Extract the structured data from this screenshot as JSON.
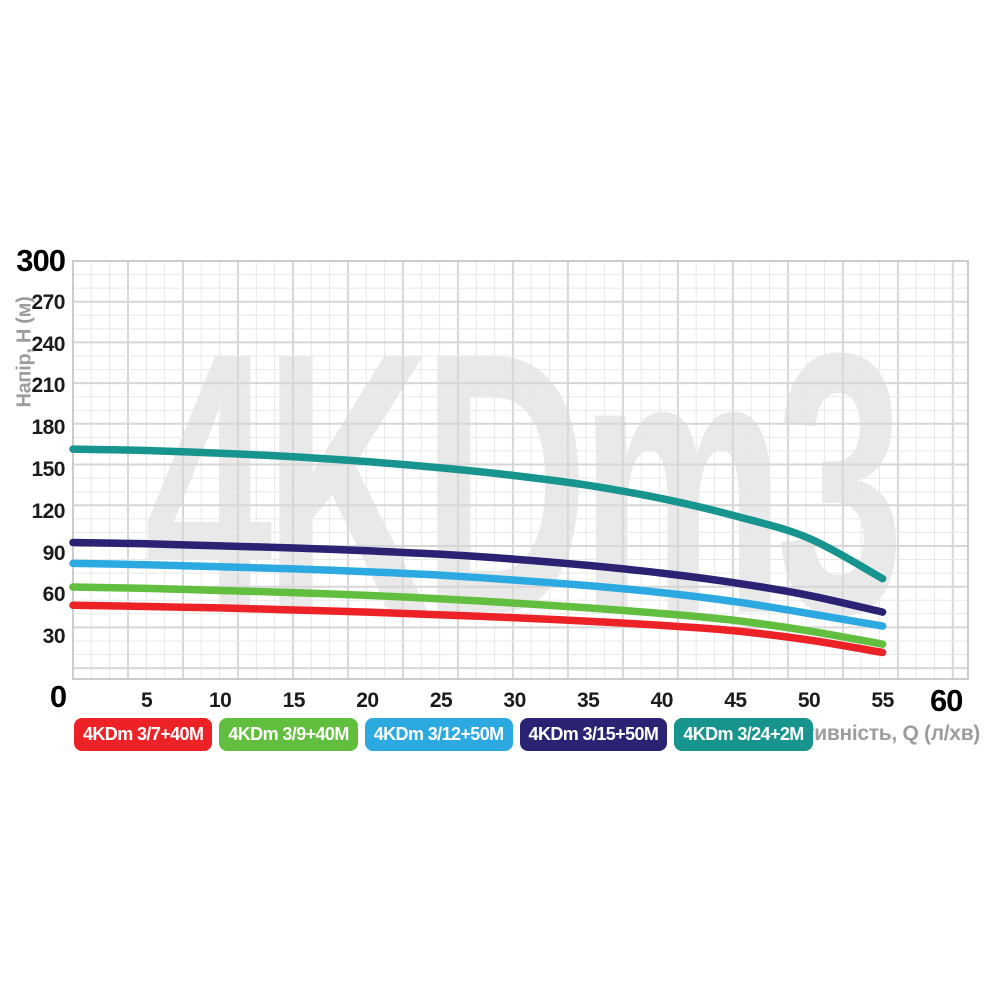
{
  "watermark": "4KDm3",
  "chart_data": {
    "type": "line",
    "title": "",
    "xlabel": "Продуктивність, Q (л/хв)",
    "ylabel": "Напір, H (м)",
    "xlim": [
      0,
      60
    ],
    "ylim": [
      0,
      300
    ],
    "grid": "on",
    "legend_position": "bottom",
    "x_ticks": [
      0,
      5,
      10,
      15,
      20,
      25,
      30,
      35,
      40,
      45,
      50,
      55,
      60
    ],
    "y_ticks": [
      0,
      30,
      60,
      90,
      120,
      150,
      180,
      210,
      240,
      270,
      300
    ],
    "x": [
      0,
      5,
      10,
      15,
      20,
      25,
      30,
      35,
      40,
      45,
      50,
      55
    ],
    "series": [
      {
        "name": "4KDm 3/7+40M",
        "color": "#ec2227",
        "values": [
          53,
          52,
          51,
          49.5,
          48,
          46,
          44,
          41.5,
          38.5,
          34.5,
          28,
          19
        ]
      },
      {
        "name": "4KDm 3/9+40M",
        "color": "#62be3e",
        "values": [
          66,
          65,
          63.5,
          62,
          60,
          57.5,
          54.5,
          51,
          47,
          42,
          34.5,
          25
        ]
      },
      {
        "name": "4KDm 3/12+50M",
        "color": "#2ba9e0",
        "values": [
          83,
          82,
          80.5,
          79,
          77,
          74.5,
          71,
          67,
          62,
          55.5,
          47,
          38
        ]
      },
      {
        "name": "4KDm 3/15+50M",
        "color": "#2a2273",
        "values": [
          98,
          97,
          95.5,
          94,
          92,
          89.5,
          86,
          81.5,
          76,
          69,
          60,
          48
        ]
      },
      {
        "name": "4KDm 3/24+2M",
        "color": "#17948e",
        "values": [
          165,
          164,
          162,
          159.5,
          156,
          151.5,
          146,
          139,
          129.5,
          117,
          101,
          72
        ]
      }
    ],
    "colors": {
      "grid_minor": "#e8e8e8",
      "grid_major": "#d7d7d7",
      "plot_border": "#cccccc",
      "tick_text": "#1b1b1b",
      "endpoint_text": "#000000",
      "axis_title_text": "#9d9d9d",
      "watermark_text": "#e9e9e9"
    }
  }
}
